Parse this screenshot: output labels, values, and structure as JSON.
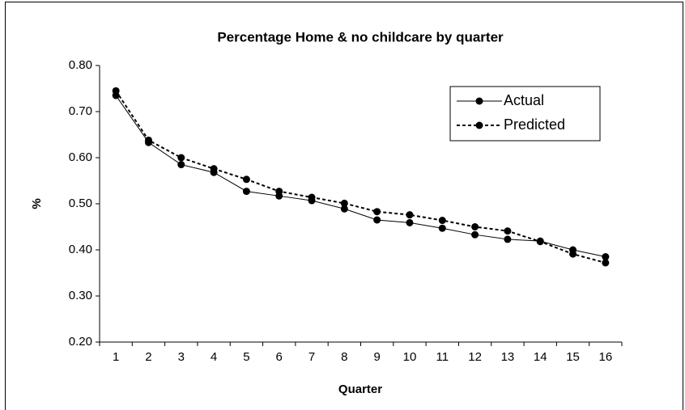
{
  "chart_data": {
    "type": "line",
    "title": "Percentage Home & no childcare by quarter",
    "x_label": "Quarter",
    "y_label": "%",
    "categories": [
      "1",
      "2",
      "3",
      "4",
      "5",
      "6",
      "7",
      "8",
      "9",
      "10",
      "11",
      "12",
      "13",
      "14",
      "15",
      "16"
    ],
    "series": [
      {
        "name": "Actual",
        "color": "#000000",
        "line_style": "solid",
        "values": [
          0.735,
          0.633,
          0.585,
          0.568,
          0.527,
          0.517,
          0.507,
          0.489,
          0.465,
          0.459,
          0.447,
          0.433,
          0.423,
          0.419,
          0.4,
          0.385
        ]
      },
      {
        "name": "Predicted",
        "color": "#000000",
        "line_style": "dashed",
        "values": [
          0.745,
          0.638,
          0.6,
          0.576,
          0.553,
          0.527,
          0.514,
          0.501,
          0.483,
          0.476,
          0.464,
          0.45,
          0.441,
          0.418,
          0.391,
          0.372
        ]
      }
    ],
    "ylim": [
      0.2,
      0.8
    ],
    "yticks": [
      {
        "value": 0.2,
        "label": "0.20"
      },
      {
        "value": 0.3,
        "label": "0.30"
      },
      {
        "value": 0.4,
        "label": "0.40"
      },
      {
        "value": 0.5,
        "label": "0.50"
      },
      {
        "value": 0.6,
        "label": "0.60"
      },
      {
        "value": 0.7,
        "label": "0.70"
      },
      {
        "value": 0.8,
        "label": "0.80"
      }
    ],
    "grid": false,
    "legend_position": "upper-right"
  }
}
